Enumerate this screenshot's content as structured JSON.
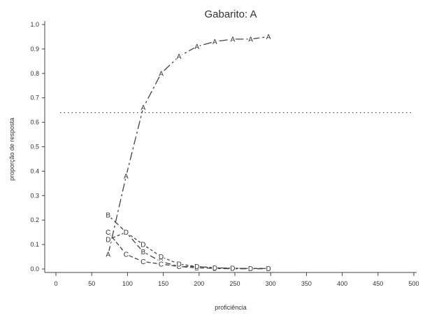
{
  "chart_data": {
    "type": "line",
    "title": "Gabarito: A",
    "xlabel": "proficiência",
    "ylabel": "proporção de resposta",
    "xlim": [
      0,
      500
    ],
    "ylim": [
      0.0,
      1.0
    ],
    "x_ticks": [
      "0",
      "50",
      "100",
      "150",
      "200",
      "250",
      "300",
      "350",
      "400",
      "450",
      "500"
    ],
    "y_ticks": [
      "0.0",
      "0.1",
      "0.2",
      "0.3",
      "0.4",
      "0.5",
      "0.6",
      "0.7",
      "0.8",
      "0.9",
      "1.0"
    ],
    "reference_line": {
      "y": 0.64,
      "style": "dotted"
    },
    "grid": false,
    "x": [
      73,
      98,
      122,
      147,
      172,
      197,
      222,
      247,
      272,
      297
    ],
    "series": [
      {
        "name": "A",
        "values": [
          0.06,
          0.38,
          0.66,
          0.8,
          0.87,
          0.91,
          0.93,
          0.94,
          0.94,
          0.95
        ]
      },
      {
        "name": "B",
        "values": [
          0.22,
          0.15,
          0.07,
          0.03,
          0.01,
          0.005,
          0.002,
          0.001,
          0.001,
          0.001
        ]
      },
      {
        "name": "C",
        "values": [
          0.15,
          0.06,
          0.03,
          0.02,
          0.01,
          0.01,
          0.005,
          0.003,
          0.002,
          0.002
        ]
      },
      {
        "name": "D",
        "values": [
          0.12,
          0.15,
          0.1,
          0.05,
          0.02,
          0.01,
          0.005,
          0.003,
          0.002,
          0.002
        ]
      }
    ],
    "colors": {
      "lines": "#444444",
      "axis": "#444444",
      "reference": "#555555"
    }
  }
}
